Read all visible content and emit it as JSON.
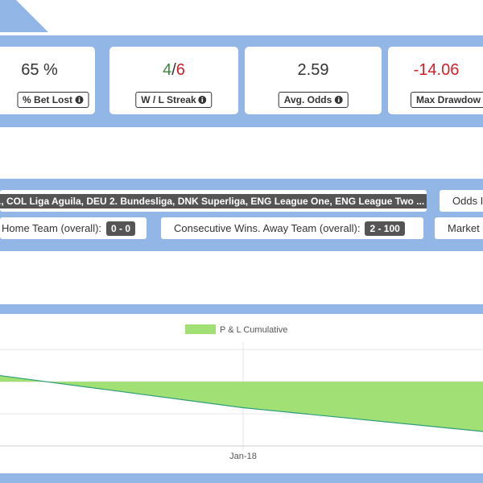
{
  "stats": [
    {
      "value": "65 %",
      "label": "% Bet Lost"
    },
    {
      "wins": "4",
      "separator": "/",
      "losses": "6",
      "label": "W / L Streak"
    },
    {
      "value": "2.59",
      "label": "Avg. Odds"
    },
    {
      "value": "-14.06",
      "label": "Max Drawdow"
    }
  ],
  "filters": {
    "leagues": "., COL Liga Aguila, DEU 2. Bundesliga, DNK Superliga, ENG League One, ENG League Two ...",
    "odds": "Odds I",
    "home_label": "Home Team (overall):",
    "home_value": "0 - 0",
    "away_label": "Consecutive Wins. Away Team (overall):",
    "away_value": "2 - 100",
    "market": "Market"
  },
  "chart_data": {
    "type": "area",
    "series": [
      {
        "name": "P & L Cumulative",
        "color": "#a0e075",
        "line_color": "#2e9e7a",
        "x": [
          0,
          1,
          2
        ],
        "values": [
          0.19,
          -0.81,
          -1.56
        ]
      }
    ],
    "xlim": [
      0,
      2
    ],
    "xticks": [
      {
        "value": 1,
        "label": "Jan-18"
      }
    ],
    "ylim": [
      -2,
      1.23
    ],
    "yticks": [
      -2,
      -1,
      0,
      1
    ],
    "grid": true
  }
}
